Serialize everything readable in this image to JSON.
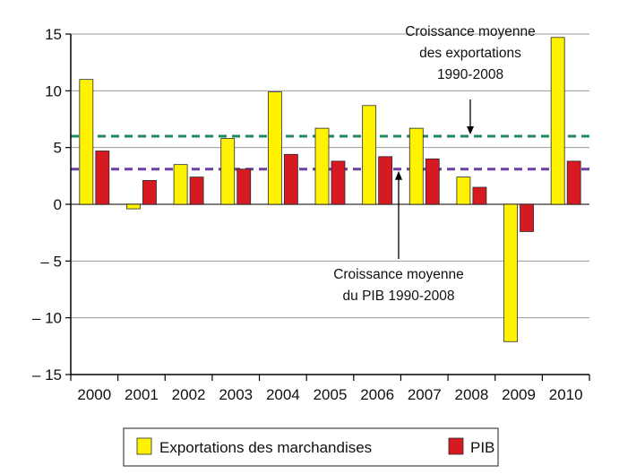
{
  "chart_data": {
    "type": "bar",
    "categories": [
      "2000",
      "2001",
      "2002",
      "2003",
      "2004",
      "2005",
      "2006",
      "2007",
      "2008",
      "2009",
      "2010"
    ],
    "series": [
      {
        "name": "Exportations des marchandises",
        "color": "#FFF200",
        "values": [
          11.0,
          -0.4,
          3.5,
          5.8,
          9.9,
          6.7,
          8.7,
          6.7,
          2.4,
          -12.1,
          14.7
        ]
      },
      {
        "name": "PIB",
        "color": "#D71921",
        "values": [
          4.7,
          2.1,
          2.4,
          3.1,
          4.4,
          3.8,
          4.2,
          4.0,
          1.5,
          -2.4,
          3.8
        ]
      }
    ],
    "ylim": [
      -15,
      15
    ],
    "yticks": [
      15,
      10,
      5,
      0,
      -5,
      -10,
      -15
    ],
    "ytick_labels": [
      "15",
      "10",
      "5",
      "0",
      "– 5",
      "– 10",
      "– 15"
    ],
    "grid": true,
    "legend_position": "bottom-center",
    "reference_lines": [
      {
        "value": 6.0,
        "color": "#1F8A5E",
        "style": "dashed",
        "label_lines": [
          "Croissance moyenne",
          "des exportations",
          "1990-2008"
        ]
      },
      {
        "value": 3.1,
        "color": "#6A3FA0",
        "style": "dashed",
        "label_lines": [
          "Croissance moyenne",
          "du PIB 1990-2008"
        ]
      }
    ],
    "title": "",
    "xlabel": "",
    "ylabel": ""
  }
}
